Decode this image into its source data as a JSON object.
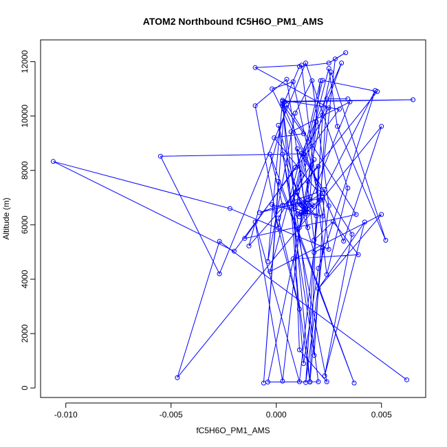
{
  "chart_data": {
    "type": "line",
    "title": "ATOM2 Northbound fC5H6O_PM1_AMS",
    "xlabel": "fC5H6O_PM1_AMS",
    "ylabel": "Altitude (m)",
    "xlim": [
      -0.0112,
      0.0071
    ],
    "ylim": [
      -350,
      12800
    ],
    "x_ticks": [
      -0.01,
      -0.005,
      0.0,
      0.005
    ],
    "x_tick_labels": [
      "-0.010",
      "-0.005",
      "0.000",
      "0.005"
    ],
    "y_ticks": [
      0,
      2000,
      4000,
      6000,
      8000,
      10000,
      12000
    ],
    "y_tick_labels": [
      "0",
      "2000",
      "4000",
      "6000",
      "8000",
      "10000",
      "12000"
    ],
    "markers": "open-circle",
    "grid": false,
    "legend": "none",
    "series": [
      {
        "color": "#0000ff",
        "points": [
          {
            "x": 0.0062,
            "y": 300
          },
          {
            "x": -0.0027,
            "y": 5390
          },
          {
            "x": -0.0047,
            "y": 380
          },
          {
            "x": 0.005,
            "y": 9620
          },
          {
            "x": 0.0032,
            "y": 5400
          },
          {
            "x": 0.0003,
            "y": 10450
          },
          {
            "x": 0.0013,
            "y": 9350
          },
          {
            "x": -0.0001,
            "y": 9200
          },
          {
            "x": 0.002,
            "y": 7200
          },
          {
            "x": -0.0008,
            "y": 6450
          },
          {
            "x": 0.0022,
            "y": 7000
          },
          {
            "x": 0.0025,
            "y": 5100
          },
          {
            "x": -0.0022,
            "y": 6600
          },
          {
            "x": -0.0106,
            "y": 8330
          },
          {
            "x": -0.002,
            "y": 5030
          },
          {
            "x": 0.003,
            "y": 10250
          },
          {
            "x": 0.0003,
            "y": 10580
          },
          {
            "x": -0.0004,
            "y": 4650
          },
          {
            "x": 0.0009,
            "y": 10110
          },
          {
            "x": 0.0017,
            "y": 11300
          },
          {
            "x": 0.0025,
            "y": 6700
          },
          {
            "x": 0.0014,
            "y": 200
          },
          {
            "x": 0.0022,
            "y": 10040
          },
          {
            "x": 0.0031,
            "y": 11950
          },
          {
            "x": 0.0012,
            "y": 8620
          },
          {
            "x": -0.0003,
            "y": 4280
          },
          {
            "x": 0.005,
            "y": 6380
          },
          {
            "x": 0.002,
            "y": 3650
          },
          {
            "x": 0.0042,
            "y": 6100
          },
          {
            "x": 0.0023,
            "y": 450
          },
          {
            "x": 0.0036,
            "y": 5650
          },
          {
            "x": 0.001,
            "y": 8800
          },
          {
            "x": 0.0015,
            "y": 5900
          },
          {
            "x": 0.0005,
            "y": 11350
          },
          {
            "x": -0.001,
            "y": 10380
          },
          {
            "x": 0.0001,
            "y": 5880
          },
          {
            "x": 0.0003,
            "y": 6720
          },
          {
            "x": -0.0003,
            "y": 8600
          },
          {
            "x": 0.0037,
            "y": 180
          },
          {
            "x": 0.0001,
            "y": 7600
          },
          {
            "x": -0.0006,
            "y": 180
          },
          {
            "x": 0.0004,
            "y": 10520
          },
          {
            "x": 0.0065,
            "y": 10600
          },
          {
            "x": 0.0003,
            "y": 10540
          },
          {
            "x": 0.0013,
            "y": 900
          },
          {
            "x": 0.002,
            "y": 4400
          },
          {
            "x": 0.0047,
            "y": 10940
          },
          {
            "x": 0.0023,
            "y": 7300
          },
          {
            "x": 0.0018,
            "y": 1200
          },
          {
            "x": 0.0001,
            "y": 9660
          },
          {
            "x": 0.0018,
            "y": 4980
          },
          {
            "x": 0.0022,
            "y": 5150
          },
          {
            "x": 0.0016,
            "y": 230
          },
          {
            "x": 0.002,
            "y": 8150
          },
          {
            "x": -0.0013,
            "y": 5220
          },
          {
            "x": 0.0005,
            "y": 10410
          },
          {
            "x": 0.0038,
            "y": 6380
          },
          {
            "x": -0.0015,
            "y": 5500
          },
          {
            "x": 0.0009,
            "y": 8110
          },
          {
            "x": 0.0025,
            "y": 10300
          },
          {
            "x": -0.001,
            "y": 11780
          },
          {
            "x": 0.0012,
            "y": 11870
          },
          {
            "x": 0.0024,
            "y": 4170
          },
          {
            "x": 0.0034,
            "y": 7350
          },
          {
            "x": 0.0014,
            "y": 11950
          },
          {
            "x": -0.0027,
            "y": 4200
          },
          {
            "x": -0.0055,
            "y": 8520
          },
          {
            "x": 0.0013,
            "y": 8610
          },
          {
            "x": 0.0018,
            "y": 5440
          },
          {
            "x": 0.0027,
            "y": 6120
          },
          {
            "x": 0.0039,
            "y": 4900
          },
          {
            "x": 0.0008,
            "y": 4750
          },
          {
            "x": 0.0016,
            "y": 220
          },
          {
            "x": 0.0008,
            "y": 6780
          },
          {
            "x": 0.0022,
            "y": 11310
          },
          {
            "x": 0.0048,
            "y": 10900
          },
          {
            "x": 0.001,
            "y": 7230
          },
          {
            "x": 0.0025,
            "y": 11750
          },
          {
            "x": 0.0029,
            "y": 9620
          },
          {
            "x": 0.0052,
            "y": 5430
          },
          {
            "x": 0.0026,
            "y": 11620
          },
          {
            "x": 0.0015,
            "y": 7600
          },
          {
            "x": 0.0011,
            "y": 5900
          },
          {
            "x": 0.0035,
            "y": 10520
          },
          {
            "x": 0.0007,
            "y": 9420
          },
          {
            "x": 0.0011,
            "y": 1400
          },
          {
            "x": 0.0024,
            "y": 230
          },
          {
            "x": 0.0003,
            "y": 8600
          },
          {
            "x": 0.0014,
            "y": 6400
          },
          {
            "x": -0.0002,
            "y": 6740
          },
          {
            "x": 0.0011,
            "y": 2900
          },
          {
            "x": 0.0001,
            "y": 6250
          },
          {
            "x": 0.0018,
            "y": 8400
          },
          {
            "x": -0.0004,
            "y": 220
          },
          {
            "x": 0.002,
            "y": 230
          },
          {
            "x": 0.0003,
            "y": 10370
          },
          {
            "x": 0.0011,
            "y": 11820
          },
          {
            "x": 0.0025,
            "y": 11950
          },
          {
            "x": 0.0033,
            "y": 12330
          },
          {
            "x": 0.0028,
            "y": 12100
          },
          {
            "x": 0.0011,
            "y": 230
          },
          {
            "x": -0.001,
            "y": 6100
          },
          {
            "x": 0.0003,
            "y": 250
          },
          {
            "x": 0.0012,
            "y": 6460
          },
          {
            "x": 0.0022,
            "y": 6320
          },
          {
            "x": 0.0008,
            "y": 11260
          },
          {
            "x": -0.0002,
            "y": 11000
          },
          {
            "x": 0.0022,
            "y": 7150
          },
          {
            "x": 0.0014,
            "y": 6820
          },
          {
            "x": 0.0021,
            "y": 11300
          },
          {
            "x": 0.0007,
            "y": 6650
          },
          {
            "x": 0.0014,
            "y": 6470
          },
          {
            "x": 0.001,
            "y": 6390
          },
          {
            "x": 0.0009,
            "y": 6600
          },
          {
            "x": 0.0019,
            "y": 9790
          },
          {
            "x": 0.0016,
            "y": 7020
          },
          {
            "x": 0.001,
            "y": 6760
          },
          {
            "x": 0.0015,
            "y": 6470
          },
          {
            "x": 0.0011,
            "y": 6840
          },
          {
            "x": 0.0017,
            "y": 6730
          },
          {
            "x": 0.0014,
            "y": 6590
          },
          {
            "x": 0.0009,
            "y": 7190
          },
          {
            "x": 0.0019,
            "y": 6330
          },
          {
            "x": 0.0014,
            "y": 6570
          },
          {
            "x": 0.0012,
            "y": 6710
          },
          {
            "x": 0.0018,
            "y": 6680
          },
          {
            "x": 0.0011,
            "y": 6300
          },
          {
            "x": 0.0016,
            "y": 6920
          },
          {
            "x": 0.0013,
            "y": 6520
          },
          {
            "x": 0.0021,
            "y": 6900
          },
          {
            "x": 0.0024,
            "y": 10630
          },
          {
            "x": 0.0034,
            "y": 10630
          }
        ]
      }
    ]
  }
}
